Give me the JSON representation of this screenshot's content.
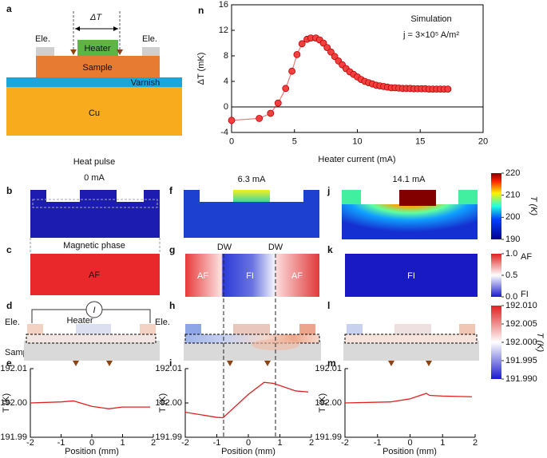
{
  "panel_labels": [
    "a",
    "n",
    "b",
    "f",
    "j",
    "c",
    "g",
    "k",
    "d",
    "h",
    "l",
    "e",
    "i",
    "m"
  ],
  "schematic_a": {
    "delta_t": "ΔT",
    "electrode_left": "Ele.",
    "heater": "Heater",
    "electrode_right": "Ele.",
    "sample": "Sample",
    "varnish": "Varnish",
    "cu": "Cu"
  },
  "heat_pulse": {
    "title": "Heat pulse",
    "currents": [
      "0 mA",
      "6.3 mA",
      "14.1 mA"
    ],
    "colorbar": {
      "label": "T (K)",
      "lim": [
        190,
        220
      ],
      "ticks": [
        190,
        200,
        210,
        220
      ]
    }
  },
  "magnetic_phase": {
    "title": "Magnetic phase",
    "c_label": "AF",
    "g_labels": [
      "DW",
      "DW",
      "AF",
      "FI",
      "AF"
    ],
    "k_label": "FI",
    "colorbar": {
      "top": "AF",
      "bottom": "FI",
      "lim": [
        0,
        1
      ],
      "ticks": [
        {
          "value": 0,
          "label": "0.0"
        },
        {
          "value": 0.5,
          "label": "0.5"
        },
        {
          "value": 1,
          "label": "1.0"
        }
      ]
    }
  },
  "device": {
    "electrode_left": "Ele.",
    "heater": "Heater",
    "current": "I",
    "electrode_right": "Ele.",
    "sample": "Sample",
    "colorbar": {
      "label": "T (K)",
      "lim": [
        191.99,
        192.01
      ],
      "ticks": [
        {
          "value": 191.99,
          "label": "191.990"
        },
        191.995,
        {
          "value": 192,
          "label": "192.000"
        },
        192.005,
        {
          "value": 192.01,
          "label": "192.010"
        }
      ]
    }
  },
  "chart_data": [
    {
      "type": "line",
      "color": "#e02020",
      "annotations": [
        "Simulation",
        "j = 3×10⁵ A/m²"
      ],
      "xlabel": "Heater current (mA)",
      "ylabel": "ΔT (mK)",
      "x": [
        0,
        2.2,
        3.1,
        3.7,
        4.3,
        4.8,
        5.2,
        5.6,
        6.0,
        6.3,
        6.7,
        7.0,
        7.3,
        7.6,
        7.9,
        8.2,
        8.5,
        8.8,
        9.1,
        9.4,
        9.7,
        10.0,
        10.3,
        10.6,
        10.9,
        11.2,
        11.5,
        11.8,
        12.1,
        12.4,
        12.7,
        13.0,
        13.3,
        13.6,
        13.9,
        14.2,
        14.5,
        14.8,
        15.1,
        15.4,
        15.7,
        16.0,
        16.3,
        16.6,
        16.9,
        17.2
      ],
      "values": [
        -2.1,
        -1.8,
        -1.0,
        0.6,
        2.9,
        5.6,
        8.2,
        9.9,
        10.6,
        10.8,
        10.8,
        10.5,
        10.0,
        9.3,
        8.6,
        7.9,
        7.2,
        6.6,
        6.0,
        5.5,
        5.1,
        4.7,
        4.3,
        4.0,
        3.8,
        3.6,
        3.4,
        3.3,
        3.2,
        3.1,
        3.0,
        3.0,
        2.95,
        2.9,
        2.9,
        2.9,
        2.85,
        2.85,
        2.85,
        2.85,
        2.8,
        2.8,
        2.8,
        2.8,
        2.8,
        2.8
      ],
      "xlim": [
        0,
        20
      ],
      "xticks": [
        0,
        5,
        10,
        15,
        20
      ],
      "ylim": [
        -4,
        16
      ],
      "yticks": [
        -4,
        0,
        4,
        8,
        12,
        16
      ]
    },
    {
      "type": "line",
      "color": "#e02020",
      "xlabel": "Position (mm)",
      "ylabel": "T (K)",
      "x": [
        -2,
        -1,
        -0.6,
        0,
        0.55,
        1,
        1.9
      ],
      "values": [
        192.0,
        192.0003,
        192.0006,
        191.999,
        191.9983,
        191.9988,
        191.9988
      ],
      "xlim": [
        -2,
        2
      ],
      "xticks": [
        -2,
        -1,
        0,
        1,
        2
      ],
      "ylim": [
        191.99,
        192.01
      ],
      "yticks": [
        191.99,
        {
          "value": 192,
          "label": "192.00"
        },
        192.01
      ]
    },
    {
      "type": "line",
      "color": "#e02020",
      "xlabel": "Position (mm)",
      "ylabel": "T (K)",
      "x": [
        -2,
        -1,
        -0.8,
        0,
        0.5,
        0.8,
        1.5,
        1.9
      ],
      "values": [
        191.9973,
        191.9958,
        191.9957,
        192.0025,
        192.006,
        192.0057,
        192.0035,
        192.0032
      ],
      "xlim": [
        -2,
        2
      ],
      "xticks": [
        -2,
        -1,
        0,
        1,
        2
      ],
      "ylim": [
        191.99,
        192.01
      ],
      "yticks": [
        191.99,
        {
          "value": 192,
          "label": "192.00"
        },
        192.01
      ]
    },
    {
      "type": "line",
      "color": "#e02020",
      "xlabel": "Position (mm)",
      "ylabel": "T (K)",
      "x": [
        -2,
        -0.6,
        0,
        0.5,
        0.6,
        1,
        1.9
      ],
      "values": [
        192.0,
        192.0003,
        192.0012,
        192.0028,
        192.0022,
        192.002,
        192.0018
      ],
      "xlim": [
        -2,
        2
      ],
      "xticks": [
        -2,
        -1,
        0,
        1,
        2
      ],
      "ylim": [
        191.99,
        192.01
      ],
      "yticks": [
        191.99,
        {
          "value": 192,
          "label": "192.00"
        },
        192.01
      ]
    }
  ]
}
